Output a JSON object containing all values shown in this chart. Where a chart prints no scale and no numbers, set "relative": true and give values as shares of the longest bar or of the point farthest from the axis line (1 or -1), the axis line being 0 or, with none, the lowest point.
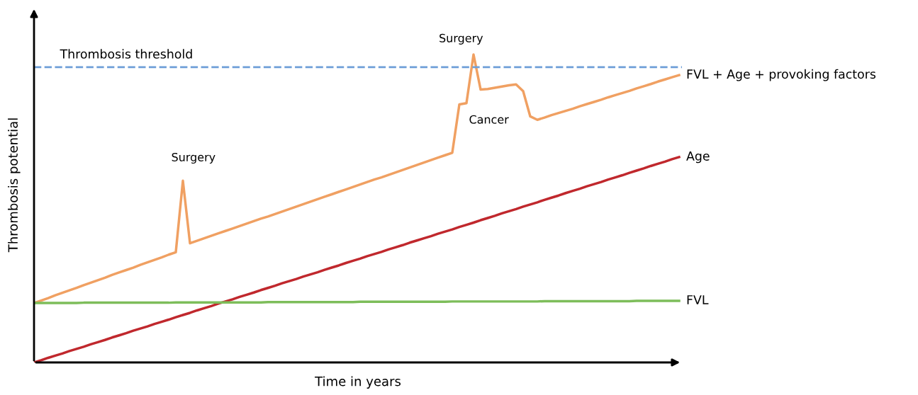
{
  "chart_data": {
    "type": "line",
    "relative": true,
    "xlabel": "Time in years",
    "ylabel": "Thrombosis potential",
    "legend": false,
    "marker": "none",
    "line_style": "solid",
    "tick_labels": false,
    "categories": [
      null,
      null,
      null,
      null,
      null,
      null,
      null,
      null,
      null,
      null,
      null,
      null,
      null,
      null,
      null,
      null,
      null,
      null,
      null,
      null,
      null,
      null,
      null,
      null,
      null,
      null,
      null,
      null,
      null,
      null,
      null,
      null,
      null,
      null,
      null,
      null,
      null,
      null,
      null,
      null,
      null,
      null,
      null,
      null,
      null,
      null,
      null,
      null,
      null,
      null,
      null,
      null,
      null,
      null,
      null,
      null,
      null,
      null,
      null,
      null,
      null,
      null,
      null,
      null,
      null,
      null,
      null,
      null,
      null,
      null,
      null,
      null,
      null,
      null,
      null,
      null,
      null,
      null,
      null,
      null,
      null,
      null,
      null,
      null,
      null,
      null,
      null,
      null,
      null,
      null,
      null,
      null
    ],
    "series": [
      {
        "name": "FVL + Age + provoking factors",
        "color": "#f0a062",
        "values": [
          0.193,
          0.201,
          0.209,
          0.218,
          0.226,
          0.234,
          0.242,
          0.251,
          0.259,
          0.267,
          0.275,
          0.284,
          0.292,
          0.3,
          0.308,
          0.317,
          0.325,
          0.333,
          0.341,
          0.35,
          0.358,
          0.59,
          0.387,
          0.395,
          0.403,
          0.411,
          0.419,
          0.427,
          0.435,
          0.443,
          0.451,
          0.459,
          0.467,
          0.474,
          0.482,
          0.49,
          0.498,
          0.506,
          0.514,
          0.522,
          0.53,
          0.538,
          0.546,
          0.554,
          0.562,
          0.57,
          0.578,
          0.586,
          0.594,
          0.601,
          0.609,
          0.617,
          0.625,
          0.633,
          0.641,
          0.649,
          0.657,
          0.665,
          0.673,
          0.681,
          0.838,
          0.842,
          1.0,
          0.886,
          0.888,
          0.892,
          0.896,
          0.9,
          0.903,
          0.881,
          0.799,
          0.788,
          0.795,
          0.803,
          0.81,
          0.817,
          0.824,
          0.832,
          0.839,
          0.846,
          0.853,
          0.861,
          0.868,
          0.875,
          0.882,
          0.89,
          0.897,
          0.904,
          0.912,
          0.919,
          0.926,
          0.933
        ]
      },
      {
        "name": "Age",
        "color": "#c0282d",
        "values": [
          0,
          0.007,
          0.015,
          0.022,
          0.029,
          0.037,
          0.044,
          0.051,
          0.059,
          0.066,
          0.073,
          0.081,
          0.088,
          0.095,
          0.103,
          0.11,
          0.117,
          0.125,
          0.132,
          0.139,
          0.147,
          0.154,
          0.161,
          0.169,
          0.176,
          0.183,
          0.191,
          0.198,
          0.205,
          0.213,
          0.22,
          0.227,
          0.235,
          0.242,
          0.249,
          0.257,
          0.264,
          0.271,
          0.279,
          0.286,
          0.293,
          0.301,
          0.308,
          0.315,
          0.323,
          0.33,
          0.337,
          0.345,
          0.352,
          0.359,
          0.367,
          0.374,
          0.381,
          0.389,
          0.396,
          0.403,
          0.41,
          0.418,
          0.425,
          0.432,
          0.44,
          0.447,
          0.454,
          0.462,
          0.469,
          0.476,
          0.484,
          0.491,
          0.498,
          0.506,
          0.513,
          0.52,
          0.528,
          0.535,
          0.542,
          0.55,
          0.557,
          0.564,
          0.572,
          0.579,
          0.586,
          0.594,
          0.601,
          0.608,
          0.616,
          0.623,
          0.63,
          0.638,
          0.645,
          0.652,
          0.66,
          0.667
        ]
      },
      {
        "name": "FVL",
        "color": "#7dbd5a",
        "values": [
          0.193,
          0.193,
          0.193,
          0.193,
          0.193,
          0.193,
          0.193,
          0.194,
          0.194,
          0.194,
          0.194,
          0.194,
          0.194,
          0.194,
          0.194,
          0.194,
          0.194,
          0.194,
          0.194,
          0.194,
          0.195,
          0.195,
          0.195,
          0.195,
          0.195,
          0.195,
          0.195,
          0.195,
          0.195,
          0.195,
          0.195,
          0.195,
          0.195,
          0.196,
          0.196,
          0.196,
          0.196,
          0.196,
          0.196,
          0.196,
          0.196,
          0.196,
          0.196,
          0.196,
          0.196,
          0.196,
          0.197,
          0.197,
          0.197,
          0.197,
          0.197,
          0.197,
          0.197,
          0.197,
          0.197,
          0.197,
          0.197,
          0.197,
          0.197,
          0.198,
          0.198,
          0.198,
          0.198,
          0.198,
          0.198,
          0.198,
          0.198,
          0.198,
          0.198,
          0.198,
          0.198,
          0.198,
          0.199,
          0.199,
          0.199,
          0.199,
          0.199,
          0.199,
          0.199,
          0.199,
          0.199,
          0.199,
          0.199,
          0.199,
          0.199,
          0.2,
          0.2,
          0.2,
          0.2,
          0.2,
          0.2,
          0.2
        ]
      }
    ],
    "ref_lines": [
      {
        "axis": "y",
        "value": 0.959,
        "label": "Thrombosis threshold",
        "color": "#6f9fd8",
        "line_style": "dashed"
      }
    ],
    "annotations": [
      "Surgery",
      "Surgery",
      "Cancer"
    ]
  }
}
